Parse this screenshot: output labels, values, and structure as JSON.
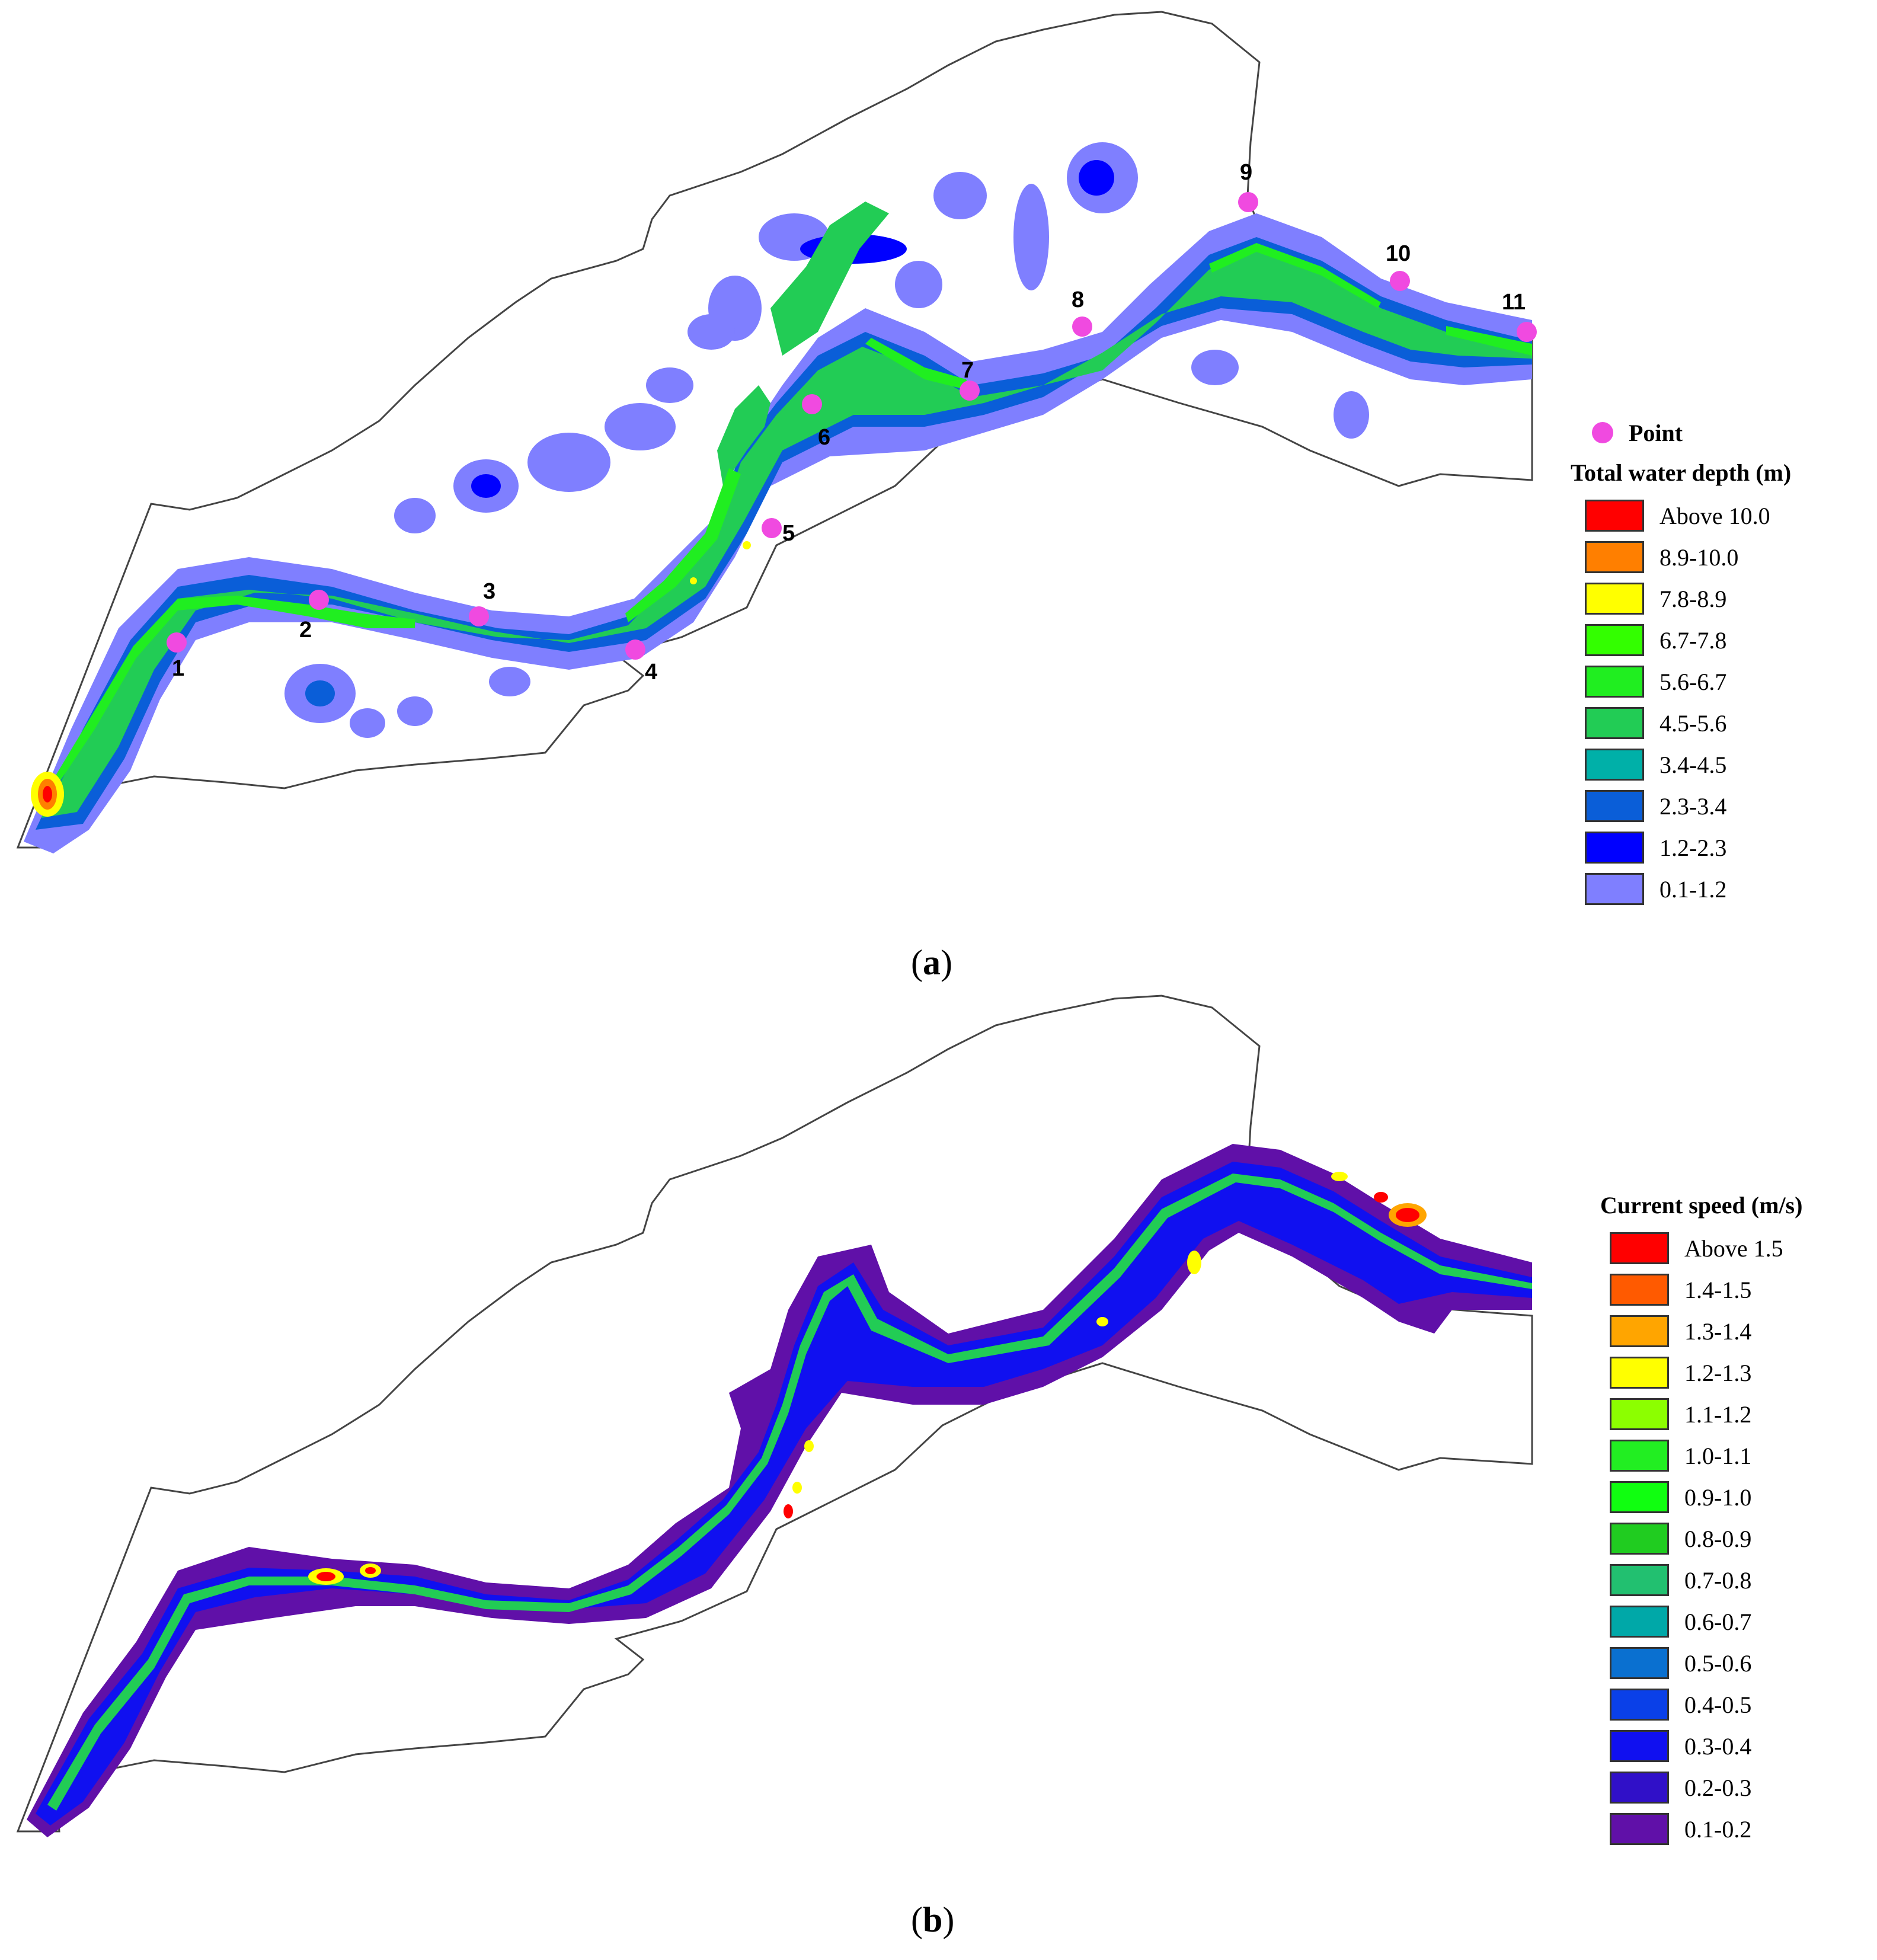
{
  "panel_a": {
    "caption_open": "(",
    "caption_letter": "a",
    "caption_close": ")",
    "point_legend_label": "Point",
    "point_color": "#f04ae0",
    "legend_title": "Total water depth (m)",
    "legend": [
      {
        "label": "Above 10.0",
        "color": "#ff0000"
      },
      {
        "label": "8.9-10.0",
        "color": "#ff7f00"
      },
      {
        "label": "7.8-8.9",
        "color": "#ffff00"
      },
      {
        "label": "6.7-7.8",
        "color": "#33ff00"
      },
      {
        "label": "5.6-6.7",
        "color": "#20ee20"
      },
      {
        "label": "4.5-5.6",
        "color": "#22cc55"
      },
      {
        "label": "3.4-4.5",
        "color": "#00b0a8"
      },
      {
        "label": "2.3-3.4",
        "color": "#0a5ed8"
      },
      {
        "label": "1.2-2.3",
        "color": "#0000ff"
      },
      {
        "label": "0.1-1.2",
        "color": "#7f7fff"
      }
    ],
    "points": [
      "1",
      "2",
      "3",
      "4",
      "5",
      "6",
      "7",
      "8",
      "9",
      "10",
      "11"
    ]
  },
  "panel_b": {
    "caption_open": "(",
    "caption_letter": "b",
    "caption_close": ")",
    "legend_title": "Current speed (m/s)",
    "legend": [
      {
        "label": "Above 1.5",
        "color": "#ff0000"
      },
      {
        "label": "1.4-1.5",
        "color": "#ff5a00"
      },
      {
        "label": "1.3-1.4",
        "color": "#ffa500"
      },
      {
        "label": "1.2-1.3",
        "color": "#ffff00"
      },
      {
        "label": "1.1-1.2",
        "color": "#8cff00"
      },
      {
        "label": "1.0-1.1",
        "color": "#22ee22"
      },
      {
        "label": "0.9-1.0",
        "color": "#10ff10"
      },
      {
        "label": "0.8-0.9",
        "color": "#20cc20"
      },
      {
        "label": "0.7-0.8",
        "color": "#22c070"
      },
      {
        "label": "0.6-0.7",
        "color": "#00a8a8"
      },
      {
        "label": "0.5-0.6",
        "color": "#0a70d0"
      },
      {
        "label": "0.4-0.5",
        "color": "#0a40e8"
      },
      {
        "label": "0.3-0.4",
        "color": "#1010f0"
      },
      {
        "label": "0.2-0.3",
        "color": "#3010c8"
      },
      {
        "label": "0.1-0.2",
        "color": "#6010a8"
      }
    ]
  }
}
